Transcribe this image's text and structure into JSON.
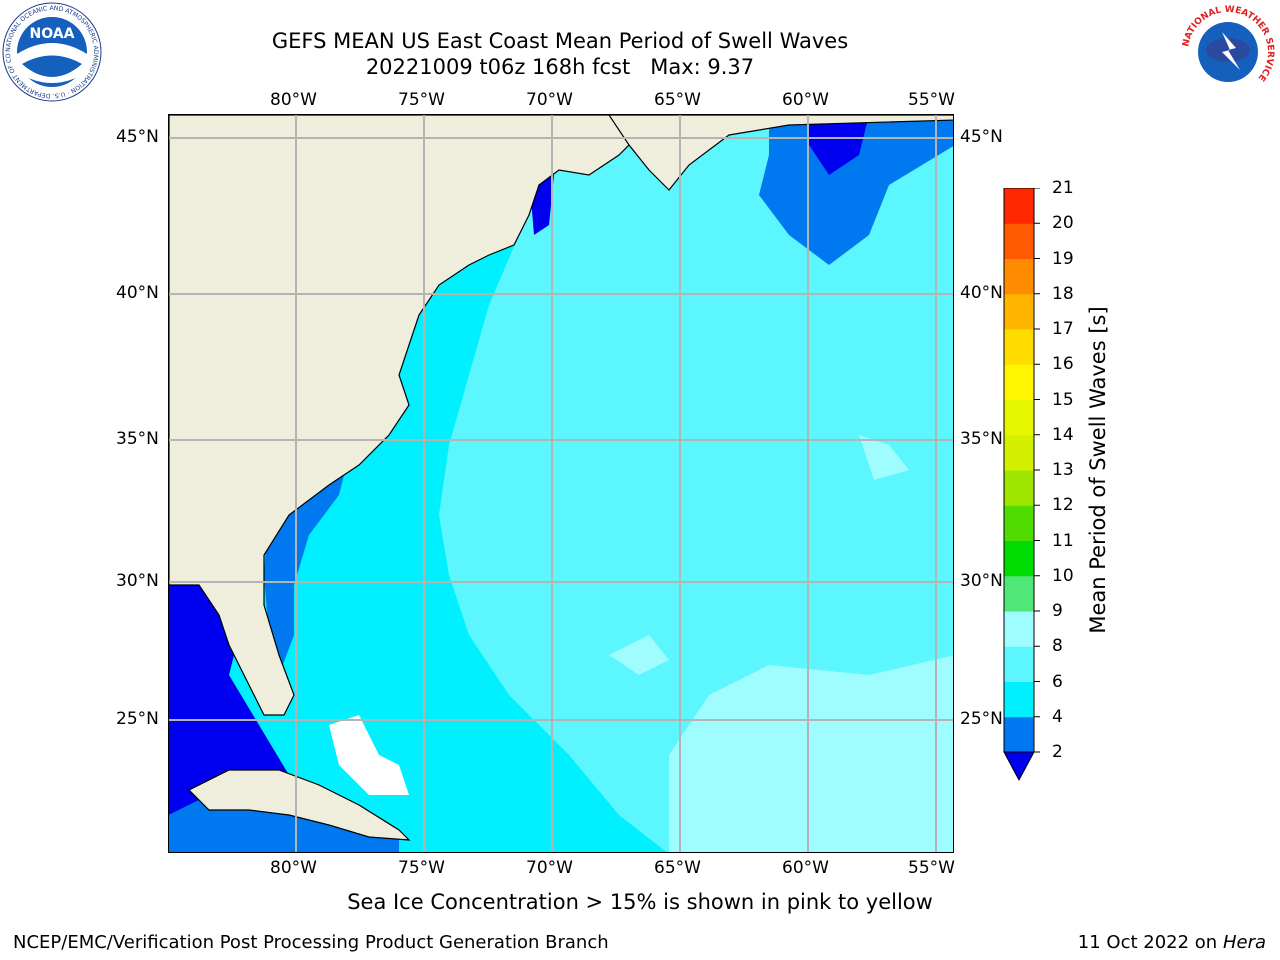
{
  "title": {
    "line1": "GEFS MEAN US East Coast Mean Period of Swell Waves",
    "line2": "20221009 t06z 168h fcst   Max: 9.37"
  },
  "logos": {
    "left": {
      "icon": "noaa-logo",
      "text": "NOAA",
      "ring_text": "NATIONAL OCEANIC AND ATMOSPHERIC ADMINISTRATION · U.S. DEPARTMENT OF COMMERCE"
    },
    "right": {
      "icon": "nws-logo",
      "ring_text": "NATIONAL WEATHER SERVICE"
    }
  },
  "map": {
    "lon_labels": [
      "80°W",
      "75°W",
      "70°W",
      "65°W",
      "60°W",
      "55°W"
    ],
    "lat_labels": [
      "45°N",
      "40°N",
      "35°N",
      "30°N",
      "25°N"
    ],
    "lon_range": [
      -85,
      -54
    ],
    "lat_range": [
      20,
      46
    ],
    "colors": {
      "land": "#efeedc",
      "cyan": "#00f0ff",
      "light_cyan": "#5cf6ff",
      "pale_cyan": "#a0fdff",
      "mid_blue": "#0078f0",
      "deep_blue": "#0000f0",
      "green": "#50e678",
      "gridline": "#b4b4b4"
    }
  },
  "colorbar": {
    "label": "Mean Period of Swell Waves [s]",
    "ticks": [
      "21",
      "20",
      "19",
      "18",
      "17",
      "16",
      "15",
      "14",
      "13",
      "12",
      "11",
      "10",
      "9",
      "8",
      "6",
      "4",
      "2"
    ],
    "colors": [
      "#0000f0",
      "#0078f0",
      "#00f0ff",
      "#5cf6ff",
      "#a0fdff",
      "#50e678",
      "#00dc00",
      "#50dc00",
      "#a0e600",
      "#d2f000",
      "#e6f500",
      "#fff500",
      "#ffdc00",
      "#ffb400",
      "#ff8c00",
      "#ff5a00",
      "#ff2800",
      "#ff0000"
    ]
  },
  "footer": {
    "note": "Sea Ice Concentration > 15% is shown in pink to yellow",
    "credit": "NCEP/EMC/Verification Post Processing Product Generation Branch",
    "date": "11 Oct 2022 on ",
    "machine": "Hera"
  }
}
